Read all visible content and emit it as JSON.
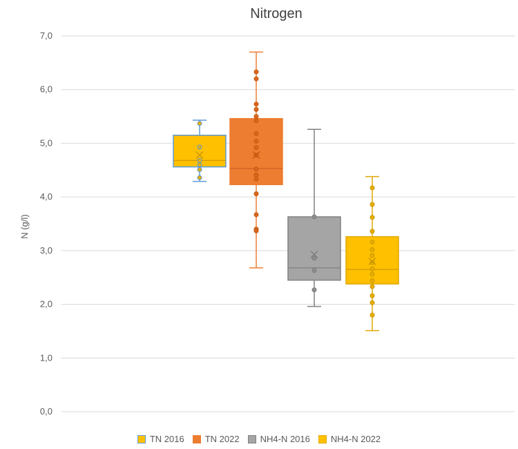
{
  "chart_data": {
    "type": "box",
    "title": "Nitrogen",
    "ylabel": "N (g/l)",
    "ylim": [
      0,
      7
    ],
    "ytick_labels": [
      "0,0",
      "1,0",
      "2,0",
      "3,0",
      "4,0",
      "5,0",
      "6,0",
      "7,0"
    ],
    "grid": true,
    "legend_position": "bottom",
    "series": [
      {
        "name": "TN 2016",
        "color": "#FFC000",
        "edge": "#5B9BD5",
        "min": 4.29,
        "q1": 4.56,
        "median": 4.68,
        "q3": 5.15,
        "max": 5.43,
        "mean": 4.78,
        "points": [
          5.37,
          4.93,
          4.68,
          4.6,
          4.51,
          4.36
        ]
      },
      {
        "name": "TN 2022",
        "color": "#ED7D31",
        "edge": "#ED7D31",
        "min": 2.68,
        "q1": 4.23,
        "median": 4.53,
        "q3": 5.46,
        "max": 6.7,
        "mean": 4.78,
        "points": [
          6.33,
          6.2,
          5.73,
          5.63,
          5.5,
          5.42,
          5.18,
          5.04,
          4.92,
          4.78,
          4.52,
          4.41,
          4.33,
          4.06,
          3.67,
          3.4,
          3.37
        ]
      },
      {
        "name": "NH4-N 2016",
        "color": "#A5A5A5",
        "edge": "#808080",
        "min": 1.96,
        "q1": 2.45,
        "median": 2.68,
        "q3": 3.63,
        "max": 5.26,
        "mean": 2.93,
        "points": [
          3.63,
          2.86,
          2.63,
          2.27
        ]
      },
      {
        "name": "NH4-N 2022",
        "color": "#FFC000",
        "edge": "#E0A800",
        "min": 1.51,
        "q1": 2.38,
        "median": 2.65,
        "q3": 3.26,
        "max": 4.38,
        "mean": 2.8,
        "points": [
          4.17,
          3.86,
          3.62,
          3.36,
          3.16,
          3.02,
          2.91,
          2.78,
          2.66,
          2.56,
          2.44,
          2.33,
          2.16,
          2.03,
          1.8
        ]
      }
    ]
  }
}
